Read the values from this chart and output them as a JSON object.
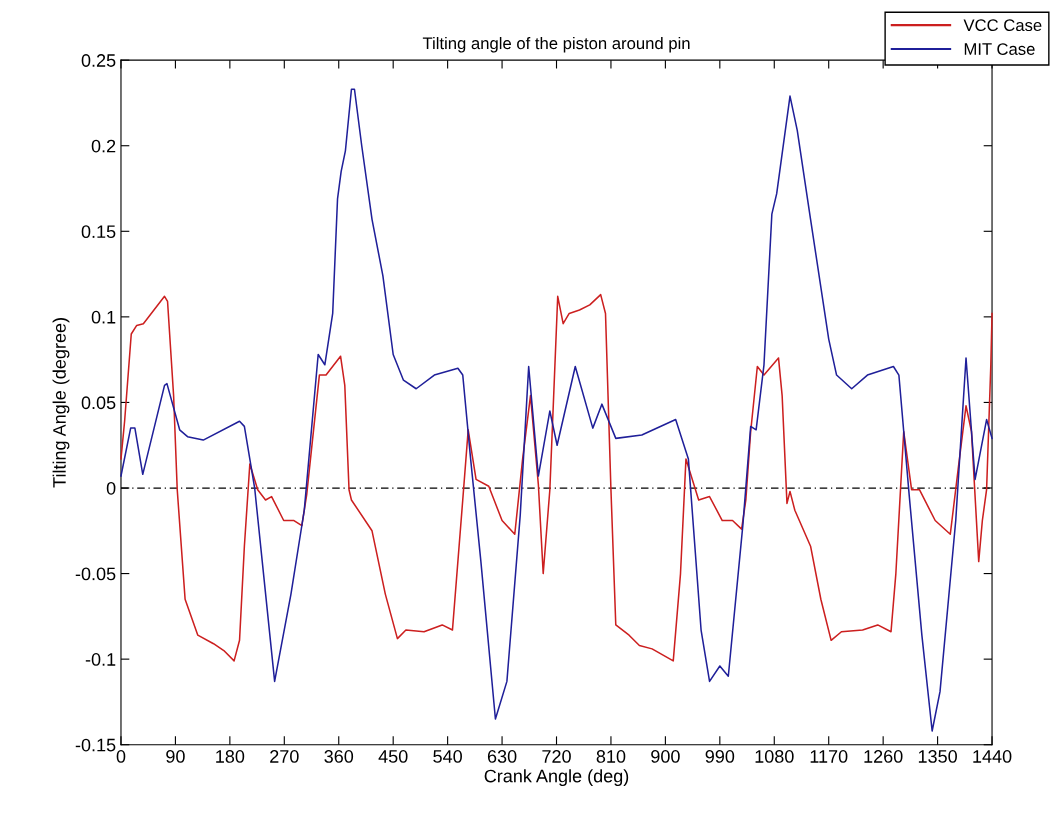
{
  "chart_data": {
    "type": "line",
    "title": "Tilting angle of the piston around pin",
    "xlabel": "Crank Angle (deg)",
    "ylabel": "Tilting Angle (degree)",
    "xlim": [
      0,
      1440
    ],
    "xticks": [
      0,
      90,
      180,
      270,
      360,
      450,
      540,
      630,
      720,
      810,
      900,
      990,
      1080,
      1170,
      1260,
      1350,
      1440
    ],
    "ylim": [
      -0.15,
      0.25
    ],
    "yticks": [
      -0.15,
      -0.1,
      -0.05,
      0,
      0.05,
      0.1,
      0.15,
      0.2,
      0.25
    ],
    "grid": false,
    "legend": "top right",
    "line_style": "solid",
    "marker": "none",
    "ref_lines": [
      {
        "axis": "y",
        "value": 0,
        "label": null,
        "color": "#000000",
        "line_style": "dashed"
      }
    ],
    "series": [
      {
        "name": "VCC Case",
        "color": "#cc1f1f",
        "x": [
          0,
          6,
          17,
          26,
          37,
          72,
          77,
          87,
          93,
          106,
          127,
          153,
          170,
          187,
          196,
          204,
          213,
          226,
          239,
          249,
          269,
          286,
          299,
          307,
          328,
          339,
          363,
          370,
          377,
          381,
          415,
          437,
          457,
          471,
          501,
          531,
          548,
          565,
          574,
          587,
          608,
          630,
          651,
          664,
          677,
          690,
          698,
          709,
          722,
          731,
          741,
          758,
          775,
          793,
          801,
          810,
          818,
          840,
          857,
          878,
          913,
          925,
          934,
          955,
          973,
          994,
          1011,
          1026,
          1033,
          1041,
          1052,
          1063,
          1087,
          1093,
          1101,
          1106,
          1114,
          1140,
          1157,
          1174,
          1191,
          1226,
          1251,
          1273,
          1281,
          1294,
          1307,
          1320,
          1346,
          1371,
          1384,
          1397,
          1406,
          1418,
          1424,
          1431,
          1438,
          1440
        ],
        "values": [
          0.017,
          0.039,
          0.09,
          0.095,
          0.096,
          0.112,
          0.109,
          0.054,
          -0.001,
          -0.065,
          -0.086,
          -0.091,
          -0.095,
          -0.101,
          -0.089,
          -0.034,
          0.014,
          -0.001,
          -0.007,
          -0.005,
          -0.019,
          -0.019,
          -0.022,
          -0.004,
          0.066,
          0.066,
          0.077,
          0.06,
          -0.001,
          -0.007,
          -0.025,
          -0.062,
          -0.088,
          -0.083,
          -0.084,
          -0.08,
          -0.083,
          -0.007,
          0.034,
          0.005,
          0.001,
          -0.019,
          -0.027,
          0.017,
          0.054,
          0.002,
          -0.05,
          -0.001,
          0.112,
          0.096,
          0.102,
          0.104,
          0.107,
          0.113,
          0.102,
          -0.001,
          -0.08,
          -0.086,
          -0.092,
          -0.094,
          -0.101,
          -0.05,
          0.017,
          -0.007,
          -0.005,
          -0.019,
          -0.019,
          -0.024,
          -0.007,
          0.033,
          0.071,
          0.066,
          0.076,
          0.054,
          -0.009,
          -0.002,
          -0.013,
          -0.034,
          -0.065,
          -0.089,
          -0.084,
          -0.083,
          -0.08,
          -0.084,
          -0.05,
          0.033,
          -0.001,
          -0.001,
          -0.019,
          -0.027,
          0.011,
          0.048,
          0.033,
          -0.043,
          -0.019,
          -0.001,
          0.072,
          0.102
        ]
      },
      {
        "name": "MIT Case",
        "color": "#1f1f99",
        "x": [
          0,
          16,
          23,
          36,
          72,
          76,
          97,
          110,
          136,
          196,
          204,
          221,
          254,
          281,
          303,
          326,
          337,
          350,
          358,
          364,
          371,
          381,
          386,
          398,
          415,
          433,
          450,
          467,
          488,
          518,
          557,
          565,
          578,
          595,
          619,
          638,
          660,
          674,
          690,
          709,
          721,
          751,
          780,
          795,
          818,
          861,
          917,
          938,
          959,
          973,
          990,
          1004,
          1028,
          1041,
          1050,
          1063,
          1076,
          1084,
          1106,
          1118,
          1140,
          1170,
          1183,
          1208,
          1234,
          1277,
          1286,
          1303,
          1324,
          1341,
          1354,
          1380,
          1397,
          1412,
          1431,
          1440
        ],
        "values": [
          0.007,
          0.035,
          0.035,
          0.008,
          0.06,
          0.061,
          0.034,
          0.03,
          0.028,
          0.039,
          0.036,
          0.0,
          -0.113,
          -0.062,
          -0.013,
          0.078,
          0.072,
          0.102,
          0.169,
          0.185,
          0.197,
          0.233,
          0.233,
          0.2,
          0.157,
          0.124,
          0.078,
          0.063,
          0.058,
          0.066,
          0.07,
          0.066,
          0.017,
          -0.043,
          -0.135,
          -0.113,
          -0.016,
          0.071,
          0.007,
          0.045,
          0.025,
          0.071,
          0.035,
          0.049,
          0.029,
          0.031,
          0.04,
          0.017,
          -0.083,
          -0.113,
          -0.104,
          -0.11,
          -0.022,
          0.036,
          0.034,
          0.072,
          0.16,
          0.172,
          0.229,
          0.209,
          0.157,
          0.087,
          0.066,
          0.058,
          0.066,
          0.071,
          0.066,
          -0.004,
          -0.086,
          -0.142,
          -0.119,
          -0.019,
          0.076,
          0.005,
          0.04,
          0.029
        ]
      }
    ]
  }
}
